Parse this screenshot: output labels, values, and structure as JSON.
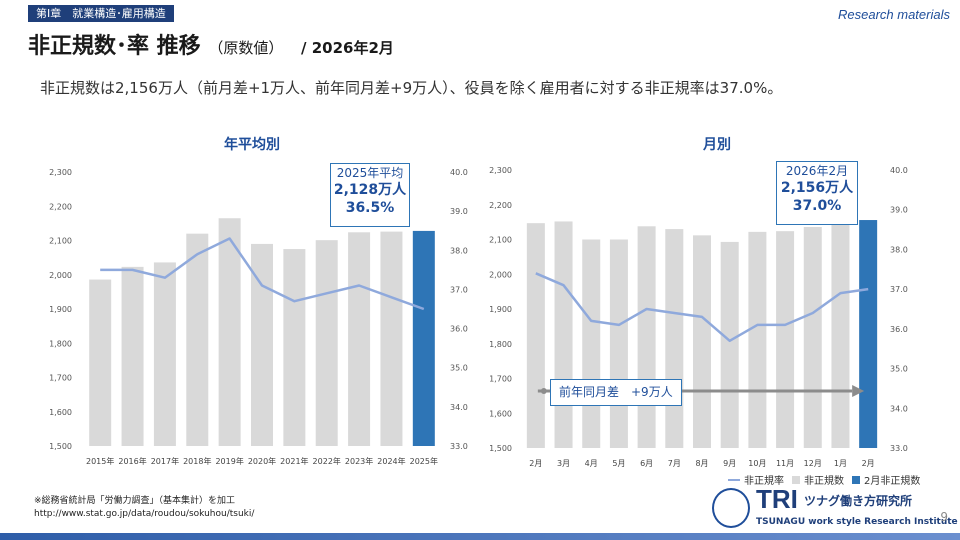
{
  "header": {
    "chapter": "第Ⅰ章　就業構造･雇用構造",
    "research": "Research materials",
    "title_main": "非正規数･率 推移",
    "title_sub": "（原数値）",
    "title_date": "/ 2026年2月"
  },
  "summary": "非正規数は2,156万人（前月差+1万人、前年同月差+9万人）、役員を除く雇用者に対する非正規率は37.0%。",
  "callout_annual": {
    "line1": "2025年平均",
    "line2": "2,128万人",
    "line3": "36.5%"
  },
  "callout_monthly": {
    "line1": "2026年2月",
    "line2": "2,156万人",
    "line3": "37.0%"
  },
  "arrow_label": "前年同月差　+9万人",
  "legend": {
    "line": "非正規率",
    "gray": "非正規数",
    "blue": "2月非正規数"
  },
  "source": {
    "line1": "※総務省統計局「労働力調査」（基本集計）を加工",
    "line2": "http://www.stat.go.jp/data/roudou/sokuhou/tsuki/"
  },
  "logo": {
    "mark": "TRI",
    "ja": "ツナグ働き方研究所",
    "en": "TSUNAGU work style Research Institute"
  },
  "page_number": "9",
  "colors": {
    "bar_gray": "#d9d9d9",
    "bar_highlight": "#2e75b6",
    "line": "#8fa9dc",
    "accent": "#1f4e9a"
  },
  "chart_data": [
    {
      "type": "bar",
      "title": "年平均別",
      "categories": [
        "2015年",
        "2016年",
        "2017年",
        "2018年",
        "2019年",
        "2020年",
        "2021年",
        "2022年",
        "2023年",
        "2024年",
        "2025年"
      ],
      "series": [
        {
          "name": "非正規数",
          "values": [
            1986,
            2023,
            2036,
            2120,
            2165,
            2090,
            2075,
            2101,
            2124,
            2126,
            2128
          ]
        },
        {
          "name": "非正規率",
          "values": [
            37.5,
            37.5,
            37.3,
            37.9,
            38.3,
            37.1,
            36.7,
            36.9,
            37.1,
            36.8,
            36.5
          ]
        }
      ],
      "highlight_index": 10,
      "ylim_left": [
        1500,
        2300
      ],
      "yticks_left": [
        "1,500",
        "1,600",
        "1,700",
        "1,800",
        "1,900",
        "2,000",
        "2,100",
        "2,200",
        "2,300"
      ],
      "ylim_right": [
        33.0,
        40.0
      ],
      "yticks_right": [
        "33.0",
        "34.0",
        "35.0",
        "36.0",
        "37.0",
        "38.0",
        "39.0",
        "40.0"
      ]
    },
    {
      "type": "bar",
      "title": "月別",
      "categories": [
        "2月",
        "3月",
        "4月",
        "5月",
        "6月",
        "7月",
        "8月",
        "9月",
        "10月",
        "11月",
        "12月",
        "1月",
        "2月"
      ],
      "series": [
        {
          "name": "非正規数",
          "values": [
            2147,
            2152,
            2100,
            2100,
            2138,
            2130,
            2112,
            2093,
            2122,
            2124,
            2136,
            2155,
            2156
          ]
        },
        {
          "name": "非正規率",
          "values": [
            37.4,
            37.1,
            36.2,
            36.1,
            36.5,
            36.4,
            36.3,
            35.7,
            36.1,
            36.1,
            36.4,
            36.9,
            37.0
          ]
        }
      ],
      "highlight_index": 12,
      "ylim_left": [
        1500,
        2300
      ],
      "yticks_left": [
        "1,500",
        "1,600",
        "1,700",
        "1,800",
        "1,900",
        "2,000",
        "2,100",
        "2,200",
        "2,300"
      ],
      "ylim_right": [
        33.0,
        40.0
      ],
      "yticks_right": [
        "33.0",
        "34.0",
        "35.0",
        "36.0",
        "37.0",
        "38.0",
        "39.0",
        "40.0"
      ]
    }
  ]
}
